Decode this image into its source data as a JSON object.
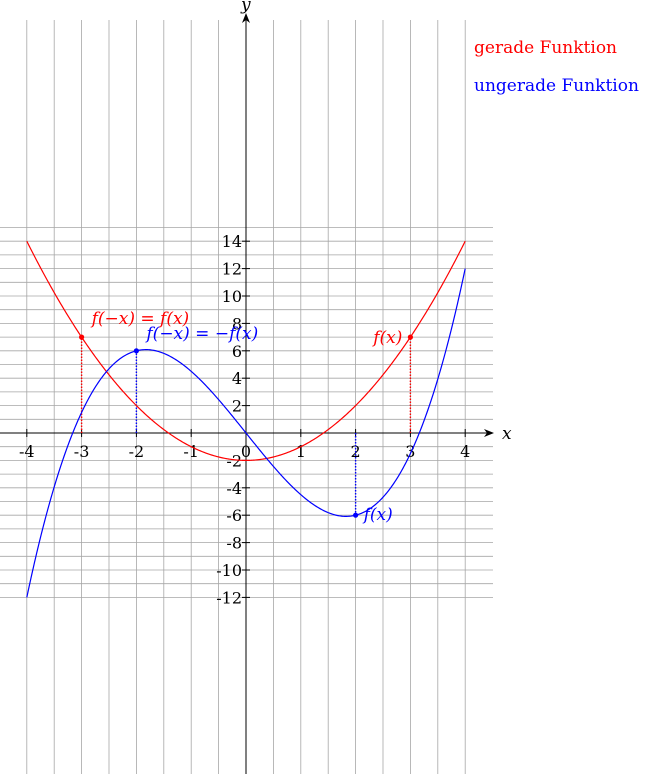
{
  "chart_data": {
    "type": "line",
    "xlabel": "x",
    "ylabel": "y",
    "xlim": [
      -4,
      4
    ],
    "ylim": [
      -12,
      14
    ],
    "x_ticks": [
      "-4",
      "-3",
      "-2",
      "-1",
      "0",
      "1",
      "2",
      "3",
      "4"
    ],
    "y_ticks": [
      "-12",
      "-10",
      "-8",
      "-6",
      "-4",
      "-2",
      "2",
      "4",
      "6",
      "8",
      "10",
      "12",
      "14"
    ],
    "grid": true,
    "series": [
      {
        "name": "gerade Funktion",
        "color": "#ff0000",
        "formula": "x^2 - 2",
        "x": [
          -4,
          -3,
          -2,
          -1,
          0,
          1,
          2,
          3,
          4
        ],
        "y": [
          14,
          7,
          2,
          -1,
          -2,
          -1,
          2,
          7,
          14
        ]
      },
      {
        "name": "ungerade Funktion",
        "color": "#0000ff",
        "formula": "0.5x^3 - 5x",
        "x": [
          -4,
          -3,
          -2,
          -1,
          0,
          1,
          2,
          3,
          4
        ],
        "y": [
          -12,
          1.5,
          6,
          4.5,
          0,
          -4.5,
          -6,
          -1.5,
          12
        ]
      }
    ],
    "markers": [
      {
        "series": 0,
        "x": -3,
        "y": 7
      },
      {
        "series": 0,
        "x": 3,
        "y": 7
      },
      {
        "series": 1,
        "x": -2,
        "y": 6
      },
      {
        "series": 1,
        "x": 2,
        "y": -6
      }
    ],
    "annotations": [
      {
        "text": "f(−x) = f(x)",
        "color": "#ff0000"
      },
      {
        "text": "f(x)",
        "color": "#ff0000"
      },
      {
        "text": "f(−x) = −f(x)",
        "color": "#0000ff"
      },
      {
        "text": "f(x)",
        "color": "#0000ff"
      }
    ]
  }
}
